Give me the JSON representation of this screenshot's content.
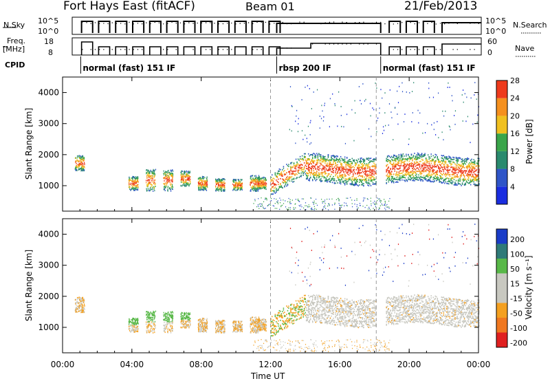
{
  "header": {
    "station": "Fort Hays East (fitACF)",
    "beam": "Beam 01",
    "date": "21/Feb/2013"
  },
  "top_panels": {
    "nsky_label": "N.Sky",
    "nsky_ticks": [
      "10^5",
      "10^0"
    ],
    "nsearch_label": "N.Search",
    "freq_label": "Freq.",
    "freq_unit": "[MHz]",
    "freq_ticks": [
      "18",
      "8"
    ],
    "nave_label": "Nave",
    "nave_ticks": [
      "60",
      "0"
    ],
    "cpid_label": "CPID",
    "cpid_segments": [
      {
        "label": "normal (fast) 151 IF",
        "start": 0.5,
        "end": 12.0
      },
      {
        "label": "rbsp 200 IF",
        "start": 12.0,
        "end": 18.1
      },
      {
        "label": "normal (fast) 151 IF",
        "start": 18.1,
        "end": 24.0
      }
    ]
  },
  "chart_data": [
    {
      "type": "heatmap",
      "title": "",
      "xlabel": "",
      "ylabel": "Slant Range [km]",
      "xlim": [
        0,
        24
      ],
      "ylim": [
        180,
        4500
      ],
      "yticks": [
        "1000",
        "2000",
        "3000",
        "4000"
      ],
      "colorbar_label": "Power [dB]",
      "colorbar_ticks": [
        "4",
        "8",
        "12",
        "16",
        "20",
        "24",
        "28"
      ],
      "colorbar_colors": [
        "#1a2de0",
        "#2f55c8",
        "#2a8a6e",
        "#3aa54a",
        "#f0c020",
        "#f5901e",
        "#ee3a1c"
      ],
      "grid": false
    },
    {
      "type": "heatmap",
      "title": "",
      "xlabel": "Time UT",
      "ylabel": "Slant Range [km]",
      "xlim": [
        0,
        24
      ],
      "ylim": [
        180,
        4500
      ],
      "xticks": [
        "00:00",
        "04:00",
        "08:00",
        "12:00",
        "16:00",
        "20:00",
        "00:00"
      ],
      "yticks": [
        "1000",
        "2000",
        "3000",
        "4000"
      ],
      "colorbar_label": "Velocity [m s⁻¹]",
      "colorbar_ticks": [
        "200",
        "100",
        "50",
        "15",
        "-15",
        "-50",
        "-100",
        "-200"
      ],
      "colorbar_colors": [
        "#1a3cc8",
        "#2f7a78",
        "#58b848",
        "#c8c8c0",
        "#c8c8c0",
        "#f4a020",
        "#f07820",
        "#e02020"
      ],
      "grid": false
    }
  ]
}
